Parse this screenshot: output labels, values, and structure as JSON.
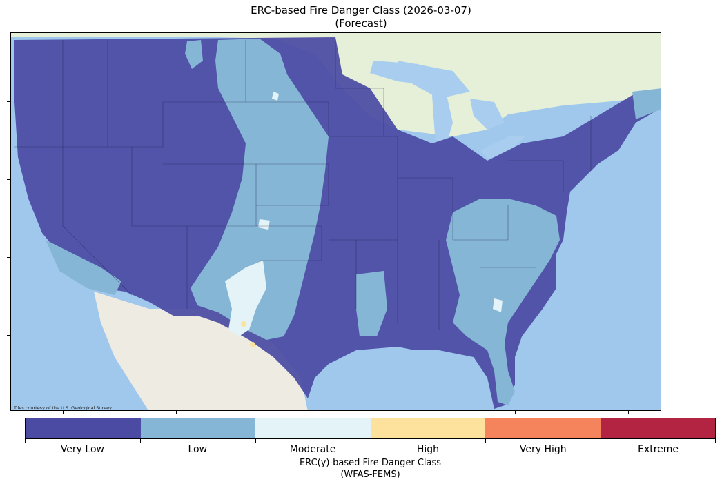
{
  "title": {
    "line1": "ERC-based Fire Danger Class (2026-03-07)",
    "line2": "(Forecast)"
  },
  "map": {
    "attribution": "Tiles courtesy of the U.S. Geological Survey",
    "colors": {
      "water": "#a9cdef",
      "land": "#eeebe2",
      "canada": "#e6efd8"
    }
  },
  "colorbar": {
    "classes": [
      {
        "label": "Very Low",
        "color": "#4b4ba4"
      },
      {
        "label": "Low",
        "color": "#86b6d6"
      },
      {
        "label": "Moderate",
        "color": "#e4f3f7"
      },
      {
        "label": "High",
        "color": "#fde29d"
      },
      {
        "label": "Very High",
        "color": "#f5845c"
      },
      {
        "label": "Extreme",
        "color": "#b32342"
      }
    ],
    "title_line1": "ERC(y)-based Fire Danger Class",
    "title_line2": "(WFAS-FEMS)"
  }
}
